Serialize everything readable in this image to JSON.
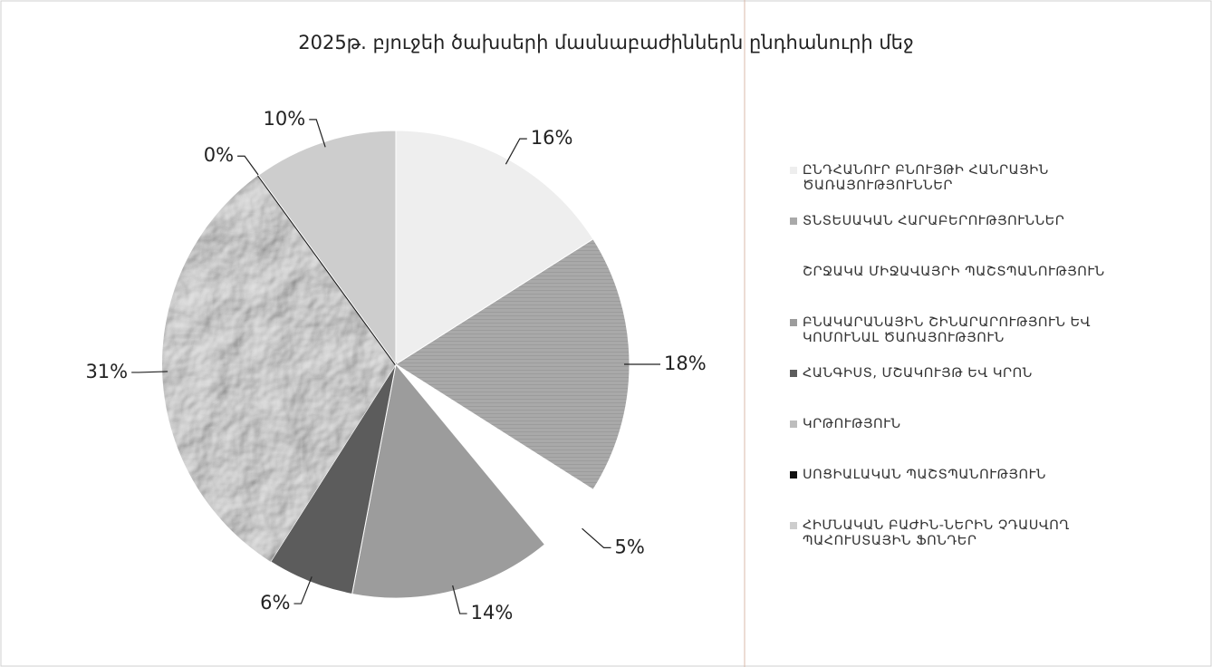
{
  "chart_data": {
    "type": "pie",
    "title": "2025թ. բյուջեի ծախսերի մասնաբաժիններն ընդհանուրի մեջ",
    "categories": [
      "ԸՆԴՀԱՆՈՒՐ ԲՆՈՒՅԹԻ ՀԱՆՐԱՅԻՆ ԾԱՌԱՅՈՒԹՅՈՒՆՆԵՐ",
      "ՏՆՏԵՍԱԿԱՆ ՀԱՐԱԲԵՐՈՒԹՅՈՒՆՆԵՐ",
      "ՇՐՋԱԿԱ ՄԻՋԱՎԱՅՐԻ ՊԱՇՏՊԱՆՈՒԹՅՈՒՆ",
      "ԲՆԱԿԱՐԱՆԱՅԻՆ ՇԻՆԱՐԱՐՈՒԹՅՈՒՆ ԵՎ ԿՈՄՈՒՆԱԼ ԾԱՌԱՅՈՒԹՅՈՒՆ",
      "ՀԱՆԳԻՍՏ, ՄՇԱԿՈՒՅԹ ԵՎ ԿՐՈՆ",
      "ԿՐԹՈՒԹՅՈՒՆ",
      "ՍՈՑԻԱԼԱԿԱՆ ՊԱՇՏՊԱՆՈՒԹՅՈՒՆ",
      "ՀԻՄՆԱԿԱՆ ԲԱԺԻՆ-ՆԵՐԻՆ ՉԴԱՍՎՈՂ ՊԱՀՈՒՍՏԱՅԻՆ ՖՈՆԴԵՐ"
    ],
    "values": [
      16,
      18,
      5,
      14,
      6,
      31,
      0,
      10
    ],
    "value_labels": [
      "16%",
      "18%",
      "5%",
      "14%",
      "6%",
      "31%",
      "0%",
      "10%"
    ],
    "colors": [
      "#eeeeee",
      "#a9a9a9",
      "#ffffff",
      "#9c9c9c",
      "#5c5c5c",
      "#bdbdbd",
      "#111111",
      "#cdcdcd"
    ],
    "patterns": [
      "none",
      "hatch",
      "none",
      "none",
      "none",
      "crumple",
      "none",
      "none"
    ],
    "legend": "right"
  }
}
